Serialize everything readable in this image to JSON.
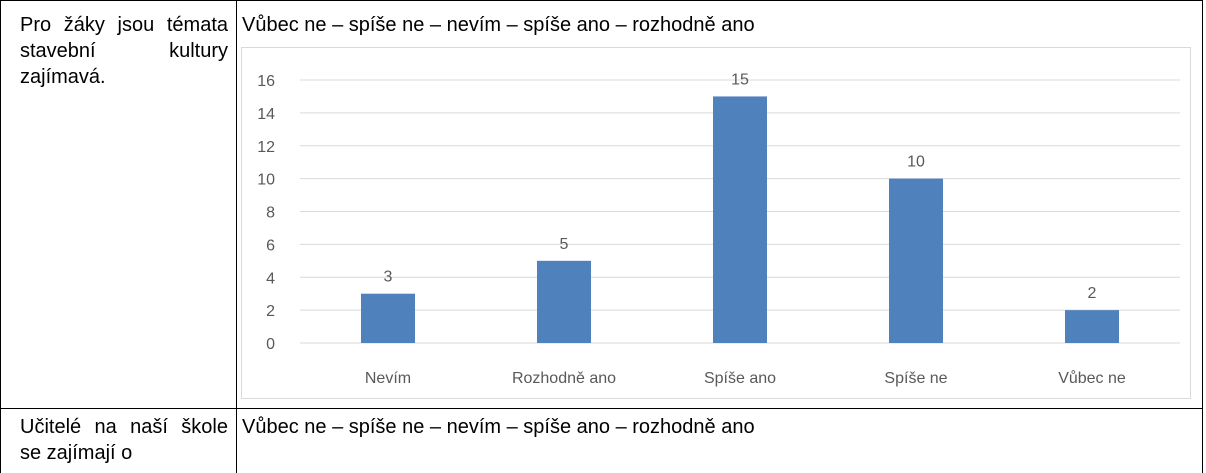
{
  "table": {
    "rows": [
      {
        "question": "Pro žáky jsou témata stavební kultury zajímavá.",
        "scale": "Vůbec ne – spíše ne – nevím – spíše ano – rozhodně ano"
      },
      {
        "question": "Učitelé na naší škole se zajímají o",
        "scale": "Vůbec ne – spíše ne – nevím – spíše ano – rozhodně ano"
      }
    ]
  },
  "chart_data": {
    "type": "bar",
    "categories": [
      "Nevím",
      "Rozhodně ano",
      "Spíše ano",
      "Spíše ne",
      "Vůbec ne"
    ],
    "values": [
      3,
      5,
      15,
      10,
      2
    ],
    "color": "#4f81bd",
    "ylim": [
      0,
      16
    ],
    "yticks": [
      0,
      2,
      4,
      6,
      8,
      10,
      12,
      14,
      16
    ],
    "grid": true
  }
}
